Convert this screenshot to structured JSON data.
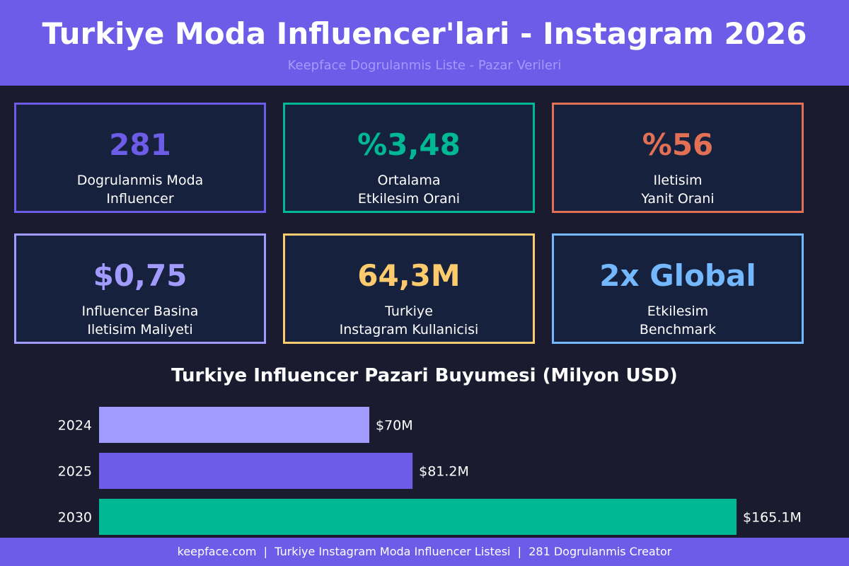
{
  "header": {
    "title": "Turkiye Moda Influencer'lari - Instagram 2026",
    "subtitle": "Keepface Dogrulanmis Liste - Pazar Verileri"
  },
  "stats": [
    {
      "value": "281",
      "label_line1": "Dogrulanmis Moda",
      "label_line2": "Influencer",
      "color": "#6c5ce7"
    },
    {
      "value": "%3,48",
      "label_line1": "Ortalama",
      "label_line2": "Etkilesim Orani",
      "color": "#00b894"
    },
    {
      "value": "%56",
      "label_line1": "Iletisim",
      "label_line2": "Yanit Orani",
      "color": "#e17055"
    },
    {
      "value": "$0,75",
      "label_line1": "Influencer Basina",
      "label_line2": "Iletisim Maliyeti",
      "color": "#a29bfe"
    },
    {
      "value": "64,3M",
      "label_line1": "Turkiye",
      "label_line2": "Instagram Kullanicisi",
      "color": "#fdcb6e"
    },
    {
      "value": "2x Global",
      "label_line1": "Etkilesim",
      "label_line2": "Benchmark",
      "color": "#74b9ff"
    }
  ],
  "chart_data": {
    "type": "bar",
    "orientation": "horizontal",
    "title": "Turkiye Influencer Pazari Buyumesi (Milyon USD)",
    "xlabel": "",
    "ylabel": "",
    "categories": [
      "2024",
      "2025",
      "2030"
    ],
    "values": [
      70,
      81.2,
      165.1
    ],
    "data_labels": [
      "$70M",
      "$81.2M",
      "$165.1M"
    ],
    "bar_colors": [
      "#a29bfe",
      "#6c5ce7",
      "#00b894"
    ],
    "xlim": [
      0,
      165.1
    ],
    "grid": false,
    "legend": "none"
  },
  "footer": {
    "text": "keepface.com  |  Turkiye Instagram Moda Influencer Listesi  |  281 Dogrulanmis Creator"
  },
  "colors": {
    "background": "#1b1b2f",
    "header": "#6c5ce7",
    "card_bg": "#16213e",
    "subtitle": "#a29bfe"
  }
}
